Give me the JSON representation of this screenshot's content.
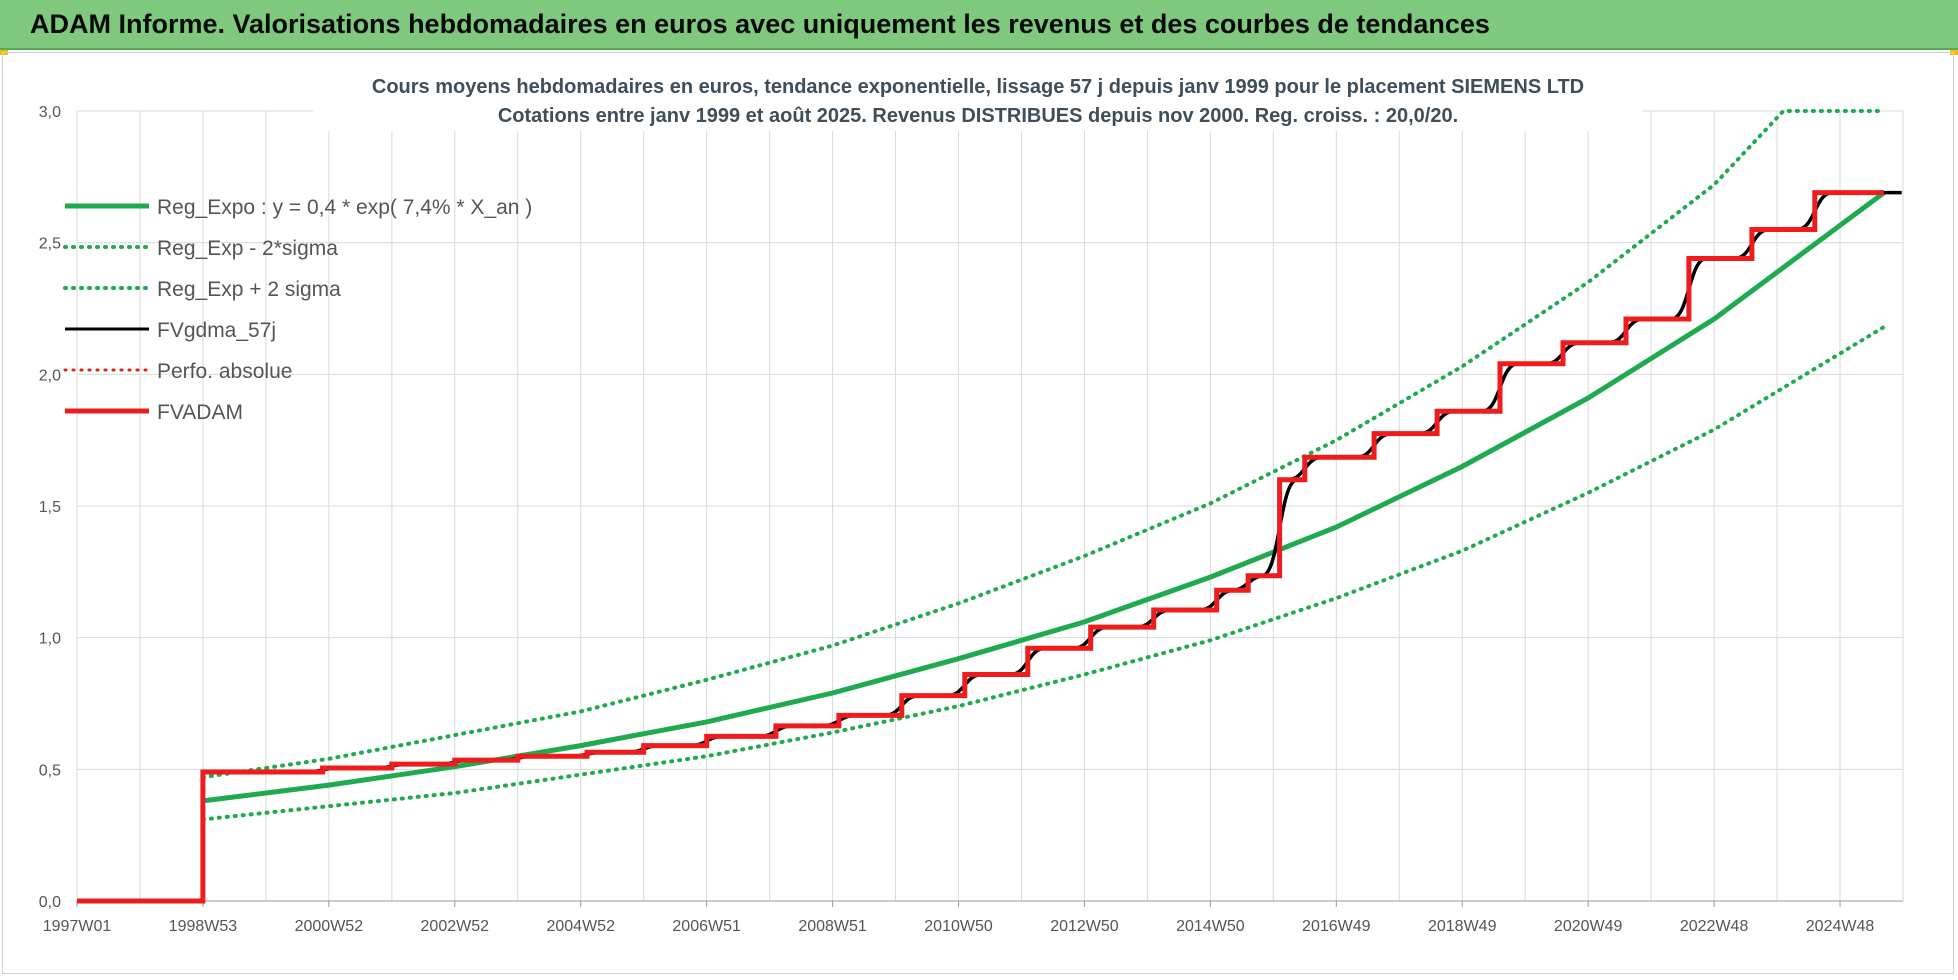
{
  "header": {
    "title": "ADAM Informe. Valorisations hebdomadaires en euros avec uniquement les revenus et des courbes de tendances"
  },
  "colors": {
    "banner": "#7ec97e",
    "trend": "#1faa4f",
    "fv": "#000000",
    "adam": "#ee1c1c",
    "grid": "#d9d9d9"
  },
  "chart_data": {
    "type": "line",
    "title_lines": [
      "Cours moyens hebdomadaires en euros, tendance exponentielle, lissage 57 j depuis janv 1999 pour le placement SIEMENS LTD",
      "Cotations entre janv 1999 et août 2025.  Revenus DISTRIBUES depuis nov 2000. Reg. croiss. : 20,0/20."
    ],
    "xlabel": "",
    "ylabel": "",
    "ylim": [
      0,
      3
    ],
    "xlim": [
      1997.0,
      2026.0
    ],
    "yticks": [
      "0,0",
      "0,5",
      "1,0",
      "1,5",
      "2,0",
      "2,5",
      "3,0"
    ],
    "xtick_labels": [
      "1997W01",
      "1998W53",
      "2000W52",
      "2002W52",
      "2004W52",
      "2006W51",
      "2008W51",
      "2010W50",
      "2012W50",
      "2014W50",
      "2016W49",
      "2018W49",
      "2020W49",
      "2022W48",
      "2024W48"
    ],
    "grid": true,
    "legend_position": "top-left",
    "legend": [
      {
        "label": "Reg_Expo : y = 0,4 * exp( 7,4% *  X_an )",
        "color": "#1faa4f",
        "style": "solid",
        "width": 5
      },
      {
        "label": "Reg_Exp - 2*sigma",
        "color": "#1faa4f",
        "style": "dotted",
        "width": 4
      },
      {
        "label": "Reg_Exp + 2 sigma",
        "color": "#1faa4f",
        "style": "dotted",
        "width": 4
      },
      {
        "label": "FVgdma_57j",
        "color": "#000000",
        "style": "solid",
        "width": 3
      },
      {
        "label": "Perfo. absolue",
        "color": "#ee1c1c",
        "style": "dotted",
        "width": 3
      },
      {
        "label": "FVADAM",
        "color": "#ee1c1c",
        "style": "solid",
        "width": 5
      }
    ],
    "series": [
      {
        "name": "Reg_Expo : y = 0,4 * exp( 7,4% *  X_an )",
        "x": [
          1999.0,
          2001.0,
          2003.0,
          2005.0,
          2007.0,
          2009.0,
          2011.0,
          2013.0,
          2015.0,
          2017.0,
          2019.0,
          2021.0,
          2023.0,
          2025.7
        ],
        "values": [
          0.38,
          0.44,
          0.51,
          0.59,
          0.68,
          0.79,
          0.92,
          1.06,
          1.23,
          1.42,
          1.65,
          1.91,
          2.21,
          2.69
        ]
      },
      {
        "name": "Reg_Exp - 2*sigma",
        "x": [
          1999.0,
          2001.0,
          2003.0,
          2005.0,
          2007.0,
          2009.0,
          2011.0,
          2013.0,
          2015.0,
          2017.0,
          2019.0,
          2021.0,
          2023.0,
          2025.7
        ],
        "values": [
          0.31,
          0.36,
          0.41,
          0.48,
          0.55,
          0.64,
          0.74,
          0.86,
          0.99,
          1.15,
          1.33,
          1.55,
          1.79,
          2.18
        ]
      },
      {
        "name": "Reg_Exp + 2 sigma",
        "x": [
          1999.0,
          2001.0,
          2003.0,
          2005.0,
          2007.0,
          2009.0,
          2011.0,
          2013.0,
          2015.0,
          2017.0,
          2019.0,
          2021.0,
          2023.0,
          2024.1,
          2025.7
        ],
        "values": [
          0.47,
          0.54,
          0.63,
          0.72,
          0.84,
          0.97,
          1.13,
          1.31,
          1.51,
          1.75,
          2.03,
          2.35,
          2.72,
          3.0,
          3.0
        ]
      },
      {
        "name": "FVADAM",
        "steps": [
          [
            1997.0,
            0.0
          ],
          [
            1999.0,
            0.49
          ],
          [
            2000.9,
            0.505
          ],
          [
            2002.0,
            0.52
          ],
          [
            2003.0,
            0.535
          ],
          [
            2004.0,
            0.55
          ],
          [
            2005.1,
            0.565
          ],
          [
            2006.0,
            0.59
          ],
          [
            2007.0,
            0.625
          ],
          [
            2008.1,
            0.665
          ],
          [
            2009.1,
            0.705
          ],
          [
            2010.1,
            0.78
          ],
          [
            2011.1,
            0.86
          ],
          [
            2012.1,
            0.96
          ],
          [
            2013.1,
            1.04
          ],
          [
            2014.1,
            1.105
          ],
          [
            2015.1,
            1.18
          ],
          [
            2015.6,
            1.235
          ],
          [
            2016.1,
            1.6
          ],
          [
            2016.5,
            1.685
          ],
          [
            2017.6,
            1.775
          ],
          [
            2018.6,
            1.86
          ],
          [
            2019.6,
            2.04
          ],
          [
            2020.6,
            2.12
          ],
          [
            2021.6,
            2.21
          ],
          [
            2022.6,
            2.44
          ],
          [
            2023.6,
            2.55
          ],
          [
            2024.6,
            2.69
          ],
          [
            2025.7,
            2.69
          ]
        ]
      }
    ]
  }
}
